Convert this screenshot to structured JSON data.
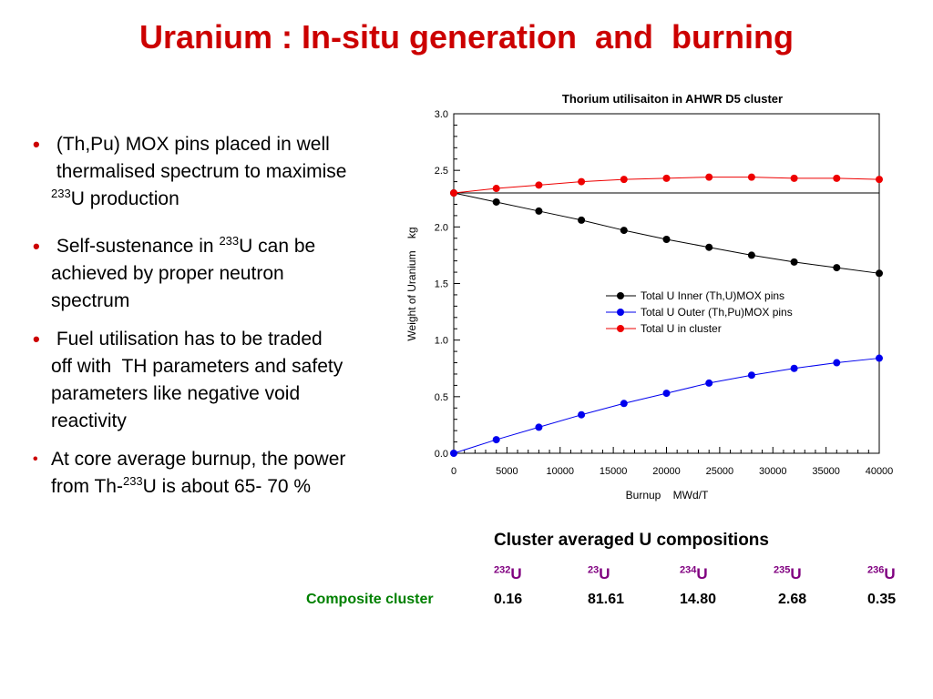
{
  "slide": {
    "title": "Uranium : In-situ generation  and  burning"
  },
  "bullets": [
    {
      "pre": " (Th,Pu) MOX pins placed in well\n thermalised spectrum to maximise\n",
      "sup": "233",
      "post": "U production"
    },
    {
      "pre": " Self-sustenance in ",
      "sup": "233",
      "post": "U can be\nachieved by proper neutron\nspectrum"
    },
    {
      "pre": " Fuel utilisation has to be traded\noff with  TH parameters and safety\nparameters like negative void\nreactivity"
    },
    {
      "pre": "At core average burnup, the power\nfrom Th-",
      "sup": "233",
      "post": "U is about 65- 70 %"
    }
  ],
  "chart_data": {
    "type": "line",
    "title": "Thorium utilisaiton in AHWR D5 cluster",
    "xlabel": "Burnup    MWd/T",
    "ylabel": "Weight of Uranium    kg",
    "xlim": [
      0,
      40000
    ],
    "ylim": [
      0,
      3.0
    ],
    "x_ticks": [
      0,
      5000,
      10000,
      15000,
      20000,
      25000,
      30000,
      35000,
      40000
    ],
    "y_ticks": [
      "0.0",
      "0.5",
      "1.0",
      "1.5",
      "2.0",
      "2.5",
      "3.0"
    ],
    "legend_position": "right-middle",
    "series": [
      {
        "name": "Total U Inner (Th,U)MOX pins",
        "color": "#000000",
        "x": [
          0,
          4000,
          8000,
          12000,
          16000,
          20000,
          24000,
          28000,
          32000,
          36000,
          40000
        ],
        "values": [
          2.3,
          2.22,
          2.14,
          2.06,
          1.97,
          1.89,
          1.82,
          1.75,
          1.69,
          1.64,
          1.59
        ]
      },
      {
        "name": "Total U Outer (Th,Pu)MOX pins",
        "color": "#0000ee",
        "x": [
          0,
          4000,
          8000,
          12000,
          16000,
          20000,
          24000,
          28000,
          32000,
          36000,
          40000
        ],
        "values": [
          0.0,
          0.12,
          0.23,
          0.34,
          0.44,
          0.53,
          0.62,
          0.69,
          0.75,
          0.8,
          0.84
        ]
      },
      {
        "name": "Total U in cluster",
        "color": "#ee0000",
        "x": [
          0,
          4000,
          8000,
          12000,
          16000,
          20000,
          24000,
          28000,
          32000,
          36000,
          40000
        ],
        "values": [
          2.3,
          2.34,
          2.37,
          2.4,
          2.42,
          2.43,
          2.44,
          2.44,
          2.43,
          2.43,
          2.42
        ]
      }
    ]
  },
  "composition": {
    "title": "Cluster averaged U compositions",
    "row_label": "Composite cluster",
    "isotopes": [
      {
        "mass": "232",
        "symbol": "U",
        "value": "0.16"
      },
      {
        "mass": "23",
        "symbol": "U",
        "value": "81.61"
      },
      {
        "mass": "234",
        "symbol": "U",
        "value": "14.80"
      },
      {
        "mass": "235",
        "symbol": "U",
        "value": "2.68"
      },
      {
        "mass": "236",
        "symbol": "U",
        "value": "0.35"
      }
    ]
  }
}
